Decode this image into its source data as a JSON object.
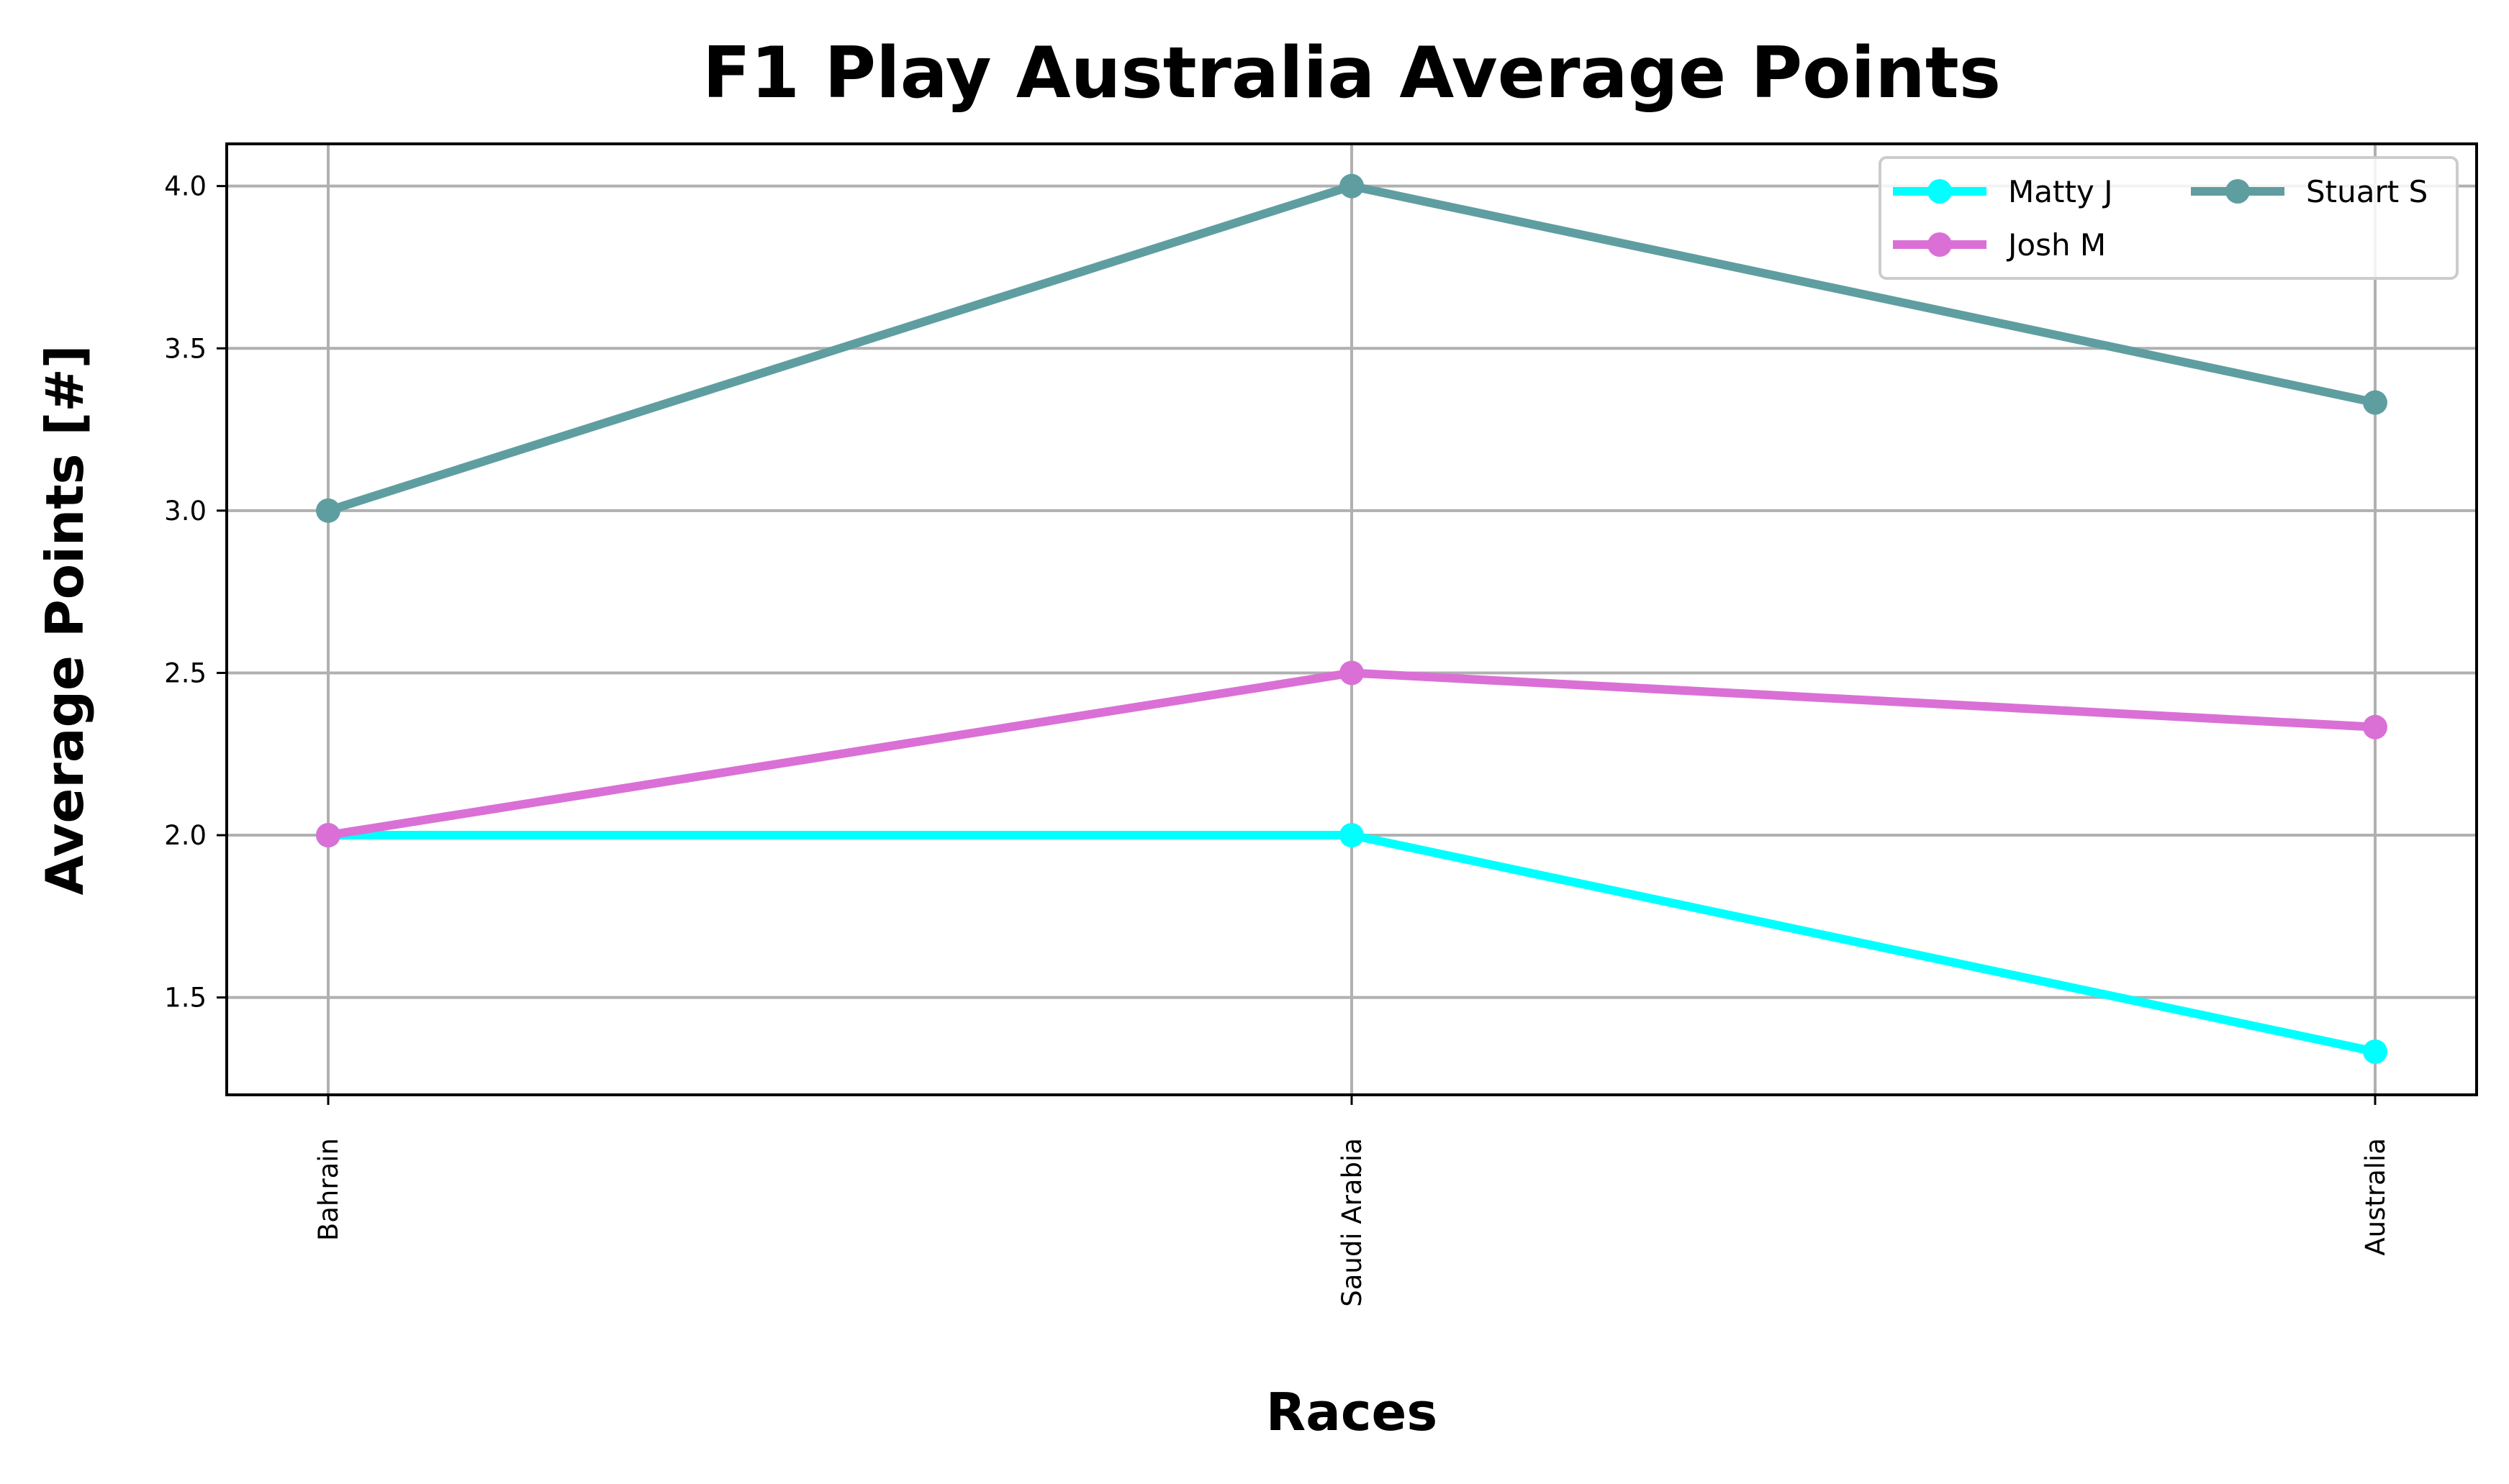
{
  "chart_data": {
    "type": "line",
    "title": "F1 Play Australia Average Points",
    "xlabel": "Races",
    "ylabel": "Average Points [#]",
    "categories": [
      "Bahrain",
      "Saudi Arabia",
      "Australia"
    ],
    "ylim": [
      1.2,
      4.13
    ],
    "yticks": [
      1.5,
      2.0,
      2.5,
      3.0,
      3.5,
      4.0
    ],
    "ytick_labels": [
      "1.5",
      "2.0",
      "2.5",
      "3.0",
      "3.5",
      "4.0"
    ],
    "grid": true,
    "legend_position": "top-right",
    "series": [
      {
        "name": "Matty J",
        "color": "#00ffff",
        "values": [
          2.0,
          2.0,
          1.333
        ]
      },
      {
        "name": "Josh M",
        "color": "#da70d6",
        "values": [
          2.0,
          2.5,
          2.333
        ]
      },
      {
        "name": "Stuart S",
        "color": "#5f9ea0",
        "values": [
          3.0,
          4.0,
          3.333
        ]
      }
    ]
  }
}
